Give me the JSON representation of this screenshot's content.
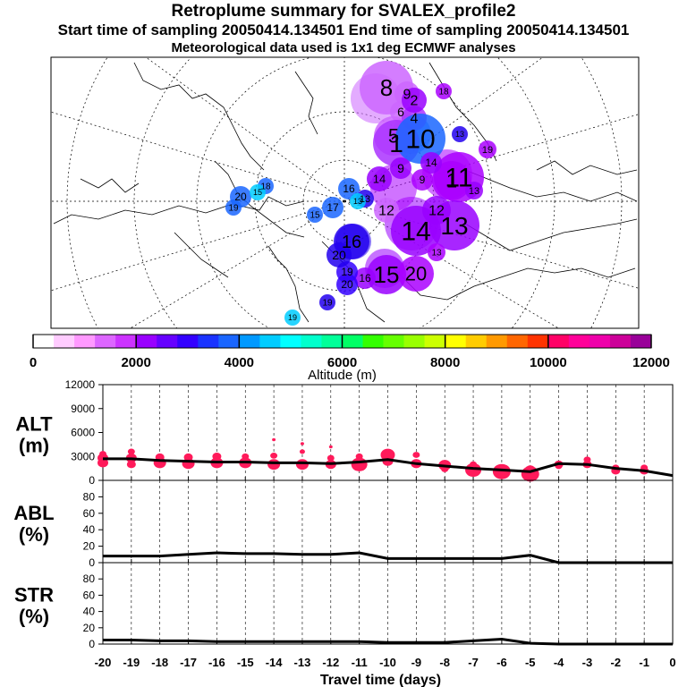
{
  "header": {
    "title": "Retroplume summary for SVALEX_profile2",
    "sampling_line": "Start time of sampling 20050414.134501     End time of sampling 20050414.134501",
    "met_line": "Meteorological data used is 1x1 deg ECMWF analyses"
  },
  "colors": {
    "series_marker": "#ff1a5a",
    "line": "#000000",
    "frame": "#000000"
  },
  "map": {
    "labels": [
      {
        "text": "8",
        "color": "#cc66ff",
        "size": 26
      },
      {
        "text": "9",
        "color": "#cc66ff",
        "size": 16
      },
      {
        "text": "6",
        "color": "#cc66ff",
        "size": 14
      },
      {
        "text": "5",
        "color": "#cc66ff",
        "size": 22
      },
      {
        "text": "4",
        "color": "#aa33ff",
        "size": 16
      },
      {
        "text": "1",
        "color": "#aa33ff",
        "size": 28
      },
      {
        "text": "10",
        "color": "#1a66ff",
        "size": 30
      },
      {
        "text": "2",
        "color": "#9900ff",
        "size": 16
      },
      {
        "text": "9",
        "color": "#9900ff",
        "size": 14
      },
      {
        "text": "1",
        "color": "#aa00ff",
        "size": 22
      },
      {
        "text": "11",
        "color": "#aa00ff",
        "size": 30
      },
      {
        "text": "14",
        "color": "#9900ff",
        "size": 12
      },
      {
        "text": "13",
        "color": "#9900ff",
        "size": 11
      },
      {
        "text": "9",
        "color": "#aa00ff",
        "size": 12
      },
      {
        "text": "13",
        "color": "#2200ee",
        "size": 11
      },
      {
        "text": "16",
        "color": "#1a66ff",
        "size": 12
      },
      {
        "text": "14",
        "color": "#9900ff",
        "size": 13
      },
      {
        "text": "12",
        "color": "#cc66ff",
        "size": 16
      },
      {
        "text": "14",
        "color": "#9900ff",
        "size": 30
      },
      {
        "text": "13",
        "color": "#9900ff",
        "size": 28
      },
      {
        "text": "12",
        "color": "#9900ff",
        "size": 16
      },
      {
        "text": "15",
        "color": "#9900ff",
        "size": 26
      },
      {
        "text": "20",
        "color": "#aa00ff",
        "size": 22
      },
      {
        "text": "16",
        "color": "#9900ff",
        "size": 12
      },
      {
        "text": "19",
        "color": "#3300ff",
        "size": 12
      },
      {
        "text": "20",
        "color": "#3300ff",
        "size": 12
      },
      {
        "text": "16",
        "color": "#2200ee",
        "size": 20
      },
      {
        "text": "20",
        "color": "#2200ee",
        "size": 14
      },
      {
        "text": "17",
        "color": "#1a66ff",
        "size": 12
      },
      {
        "text": "15",
        "color": "#1a66ff",
        "size": 10
      },
      {
        "text": "13",
        "color": "#00ccff",
        "size": 9
      },
      {
        "text": "20",
        "color": "#1a66ff",
        "size": 12
      },
      {
        "text": "19",
        "color": "#1a66ff",
        "size": 10
      },
      {
        "text": "18",
        "color": "#1a66ff",
        "size": 10
      },
      {
        "text": "15",
        "color": "#00ccff",
        "size": 9
      },
      {
        "text": "19",
        "color": "#00ccff",
        "size": 9
      },
      {
        "text": "19",
        "color": "#2200ee",
        "size": 10
      },
      {
        "text": "13",
        "color": "#aa00ff",
        "size": 10
      },
      {
        "text": "13",
        "color": "#2200ee",
        "size": 9
      },
      {
        "text": "19",
        "color": "#aa00ff",
        "size": 11
      },
      {
        "text": "18",
        "color": "#aa00ff",
        "size": 10
      }
    ]
  },
  "colorbar": {
    "colors": [
      "#ffffff",
      "#ffccff",
      "#ff99ff",
      "#dd66ff",
      "#cc33ff",
      "#9900ff",
      "#6600ff",
      "#3300ff",
      "#1a33ff",
      "#1a66ff",
      "#0099ff",
      "#00ccff",
      "#00ffff",
      "#00ffcc",
      "#00ff99",
      "#00ff66",
      "#33ff00",
      "#66ff00",
      "#99ff00",
      "#ccff00",
      "#ffff00",
      "#ffcc00",
      "#ff9900",
      "#ff6600",
      "#ff3300",
      "#ff0066",
      "#ff0099",
      "#ee00aa",
      "#cc0099",
      "#990099"
    ],
    "ticks": [
      "0",
      "2000",
      "4000",
      "6000",
      "8000",
      "10000",
      "12000"
    ],
    "label": "Altitude (m)"
  },
  "chart_data": [
    {
      "type": "line",
      "name": "ALT",
      "title": "",
      "ylabel_line1": "ALT",
      "ylabel_line2": "(m)",
      "ylim": [
        0,
        12000
      ],
      "yticks": [
        "0",
        "3000",
        "6000",
        "9000",
        "12000"
      ],
      "x": [
        -20,
        -19,
        -18,
        -17,
        -16,
        -15,
        -14,
        -13,
        -12,
        -11,
        -10,
        -9,
        -8,
        -7,
        -6,
        -5,
        -4,
        -3,
        -2,
        -1,
        0
      ],
      "y": [
        2700,
        2700,
        2500,
        2400,
        2300,
        2300,
        2200,
        2200,
        2100,
        2300,
        2600,
        2100,
        1800,
        1500,
        1300,
        1100,
        2100,
        2000,
        1500,
        1200,
        600
      ],
      "markers": [
        {
          "x": -20,
          "y": 2800,
          "s": 6
        },
        {
          "x": -20,
          "y": 2200,
          "s": 6
        },
        {
          "x": -20,
          "y": 3300,
          "s": 4
        },
        {
          "x": -19,
          "y": 2800,
          "s": 6
        },
        {
          "x": -19,
          "y": 2000,
          "s": 5
        },
        {
          "x": -19,
          "y": 3600,
          "s": 4
        },
        {
          "x": -18,
          "y": 2200,
          "s": 7
        },
        {
          "x": -18,
          "y": 2900,
          "s": 5
        },
        {
          "x": -17,
          "y": 2100,
          "s": 7
        },
        {
          "x": -17,
          "y": 2900,
          "s": 5
        },
        {
          "x": -16,
          "y": 2200,
          "s": 7
        },
        {
          "x": -16,
          "y": 3000,
          "s": 5
        },
        {
          "x": -15,
          "y": 2200,
          "s": 7
        },
        {
          "x": -15,
          "y": 3000,
          "s": 4
        },
        {
          "x": -14,
          "y": 2000,
          "s": 7
        },
        {
          "x": -14,
          "y": 3100,
          "s": 4
        },
        {
          "x": -14,
          "y": 5100,
          "s": 2
        },
        {
          "x": -13,
          "y": 2000,
          "s": 7
        },
        {
          "x": -13,
          "y": 3600,
          "s": 3
        },
        {
          "x": -13,
          "y": 4600,
          "s": 2
        },
        {
          "x": -12,
          "y": 2000,
          "s": 6
        },
        {
          "x": -12,
          "y": 2800,
          "s": 4
        },
        {
          "x": -12,
          "y": 4200,
          "s": 2
        },
        {
          "x": -11,
          "y": 2000,
          "s": 9
        },
        {
          "x": -11,
          "y": 3000,
          "s": 4
        },
        {
          "x": -10,
          "y": 3200,
          "s": 8
        },
        {
          "x": -10,
          "y": 2400,
          "s": 6
        },
        {
          "x": -9,
          "y": 2100,
          "s": 6
        },
        {
          "x": -9,
          "y": 3200,
          "s": 4
        },
        {
          "x": -8,
          "y": 1900,
          "s": 7
        },
        {
          "x": -8,
          "y": 1400,
          "s": 4
        },
        {
          "x": -7,
          "y": 1300,
          "s": 9
        },
        {
          "x": -7,
          "y": 2000,
          "s": 4
        },
        {
          "x": -6,
          "y": 1100,
          "s": 10
        },
        {
          "x": -5,
          "y": 800,
          "s": 10
        },
        {
          "x": -5,
          "y": 1300,
          "s": 6
        },
        {
          "x": -4,
          "y": 2000,
          "s": 5
        },
        {
          "x": -4,
          "y": 1800,
          "s": 4
        },
        {
          "x": -3,
          "y": 2000,
          "s": 5
        },
        {
          "x": -3,
          "y": 2600,
          "s": 4
        },
        {
          "x": -2,
          "y": 1200,
          "s": 5
        },
        {
          "x": -2,
          "y": 1600,
          "s": 4
        },
        {
          "x": -1,
          "y": 1200,
          "s": 5
        },
        {
          "x": -1,
          "y": 1600,
          "s": 4
        }
      ]
    },
    {
      "type": "line",
      "name": "ABL",
      "title": "",
      "ylabel_line1": "ABL",
      "ylabel_line2": "(%)",
      "ylim": [
        0,
        100
      ],
      "yticks": [
        "0",
        "20",
        "40",
        "60",
        "80"
      ],
      "x": [
        -20,
        -19,
        -18,
        -17,
        -16,
        -15,
        -14,
        -13,
        -12,
        -11,
        -10,
        -9,
        -8,
        -7,
        -6,
        -5,
        -4,
        -3,
        -2,
        -1,
        0
      ],
      "y": [
        8,
        8,
        8,
        10,
        12,
        11,
        11,
        10,
        10,
        12,
        5,
        5,
        5,
        5,
        5,
        9,
        0,
        0,
        0,
        0,
        0
      ]
    },
    {
      "type": "line",
      "name": "STR",
      "title": "",
      "ylabel_line1": "STR",
      "ylabel_line2": "(%)",
      "ylim": [
        0,
        100
      ],
      "yticks": [
        "0",
        "20",
        "40",
        "60",
        "80"
      ],
      "xlabel": "Travel time (days)",
      "xticks": [
        "-20",
        "-19",
        "-18",
        "-17",
        "-16",
        "-15",
        "-14",
        "-13",
        "-12",
        "-11",
        "-10",
        "-9",
        "-8",
        "-7",
        "-6",
        "-5",
        "-4",
        "-3",
        "-2",
        "-1",
        "0"
      ],
      "x": [
        -20,
        -19,
        -18,
        -17,
        -16,
        -15,
        -14,
        -13,
        -12,
        -11,
        -10,
        -9,
        -8,
        -7,
        -6,
        -5,
        -4,
        -3,
        -2,
        -1,
        0
      ],
      "y": [
        5,
        5,
        4,
        4,
        3,
        3,
        3,
        3,
        3,
        3,
        2,
        2,
        2,
        4,
        6,
        1,
        0,
        0,
        0,
        0,
        0
      ]
    }
  ]
}
